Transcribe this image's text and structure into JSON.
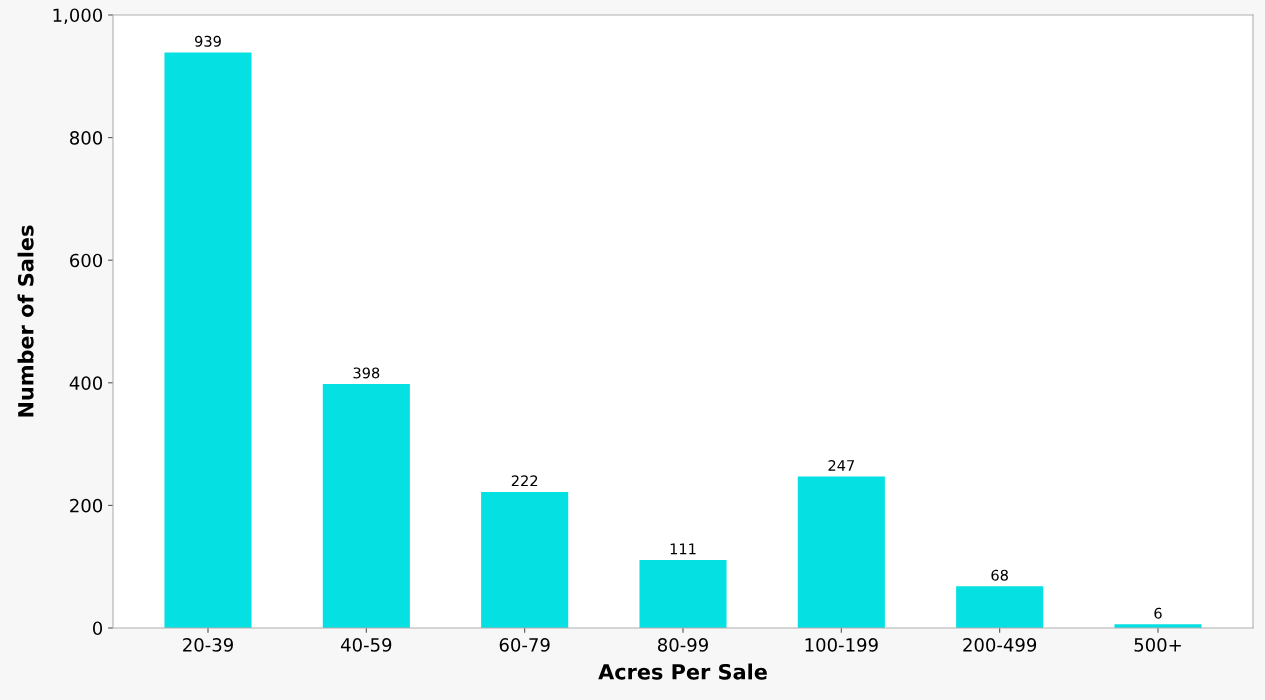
{
  "chart_data": {
    "type": "bar",
    "xlabel": "Acres Per Sale",
    "ylabel": "Number of Sales",
    "categories": [
      "20-39",
      "40-59",
      "60-79",
      "80-99",
      "100-199",
      "200-499",
      "500+"
    ],
    "values": [
      939,
      398,
      222,
      111,
      247,
      68,
      6
    ],
    "color": "#05e0e3",
    "ylim": [
      0,
      1000
    ],
    "yticks": [
      0,
      200,
      400,
      600,
      800,
      {
        "value": 1000,
        "label": "1,000"
      }
    ],
    "data_labels": true,
    "grid": false
  }
}
